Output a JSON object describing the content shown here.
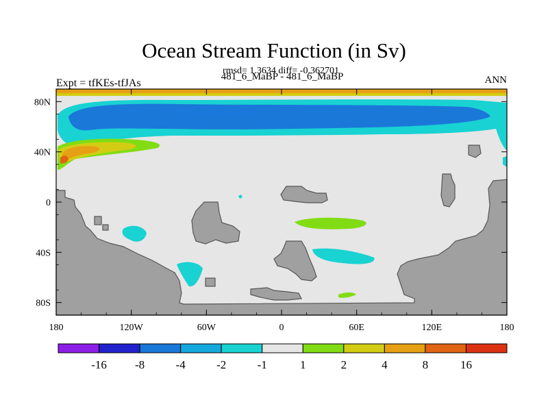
{
  "chart_data": {
    "type": "heatmap",
    "title": "Ocean Stream Function (in Sv)",
    "stats_line": "rmsd= 1.3634 diff= -0.362701",
    "left_label": "Expt = tfKEs-tfJAs",
    "center_label": "481_6_MaBP - 481_6_MaBP",
    "right_label": "ANN",
    "x_ticks": [
      {
        "value": -180,
        "label": "180"
      },
      {
        "value": -120,
        "label": "120W"
      },
      {
        "value": -60,
        "label": "60W"
      },
      {
        "value": 0,
        "label": "0"
      },
      {
        "value": 60,
        "label": "60E"
      },
      {
        "value": 120,
        "label": "120E"
      },
      {
        "value": 180,
        "label": "180"
      }
    ],
    "y_ticks": [
      {
        "value": 80,
        "label": "80N"
      },
      {
        "value": 40,
        "label": "40N"
      },
      {
        "value": 0,
        "label": "0"
      },
      {
        "value": -40,
        "label": "40S"
      },
      {
        "value": -80,
        "label": "80S"
      }
    ],
    "xlim": [
      -180,
      180
    ],
    "ylim": [
      -90,
      90
    ],
    "colorbar": {
      "levels": [
        "-16",
        "-8",
        "-4",
        "-2",
        "-1",
        "1",
        "2",
        "4",
        "8",
        "16"
      ],
      "colors": [
        "#8c1ee6",
        "#2222cc",
        "#1a78d9",
        "#14a8dc",
        "#19d2d2",
        "#e6e6e6",
        "#82dc14",
        "#d2cd14",
        "#e6a014",
        "#e06414",
        "#dc3214"
      ]
    },
    "land_color": "#a0a0a0",
    "ocean_color": "#e6e6e6"
  }
}
